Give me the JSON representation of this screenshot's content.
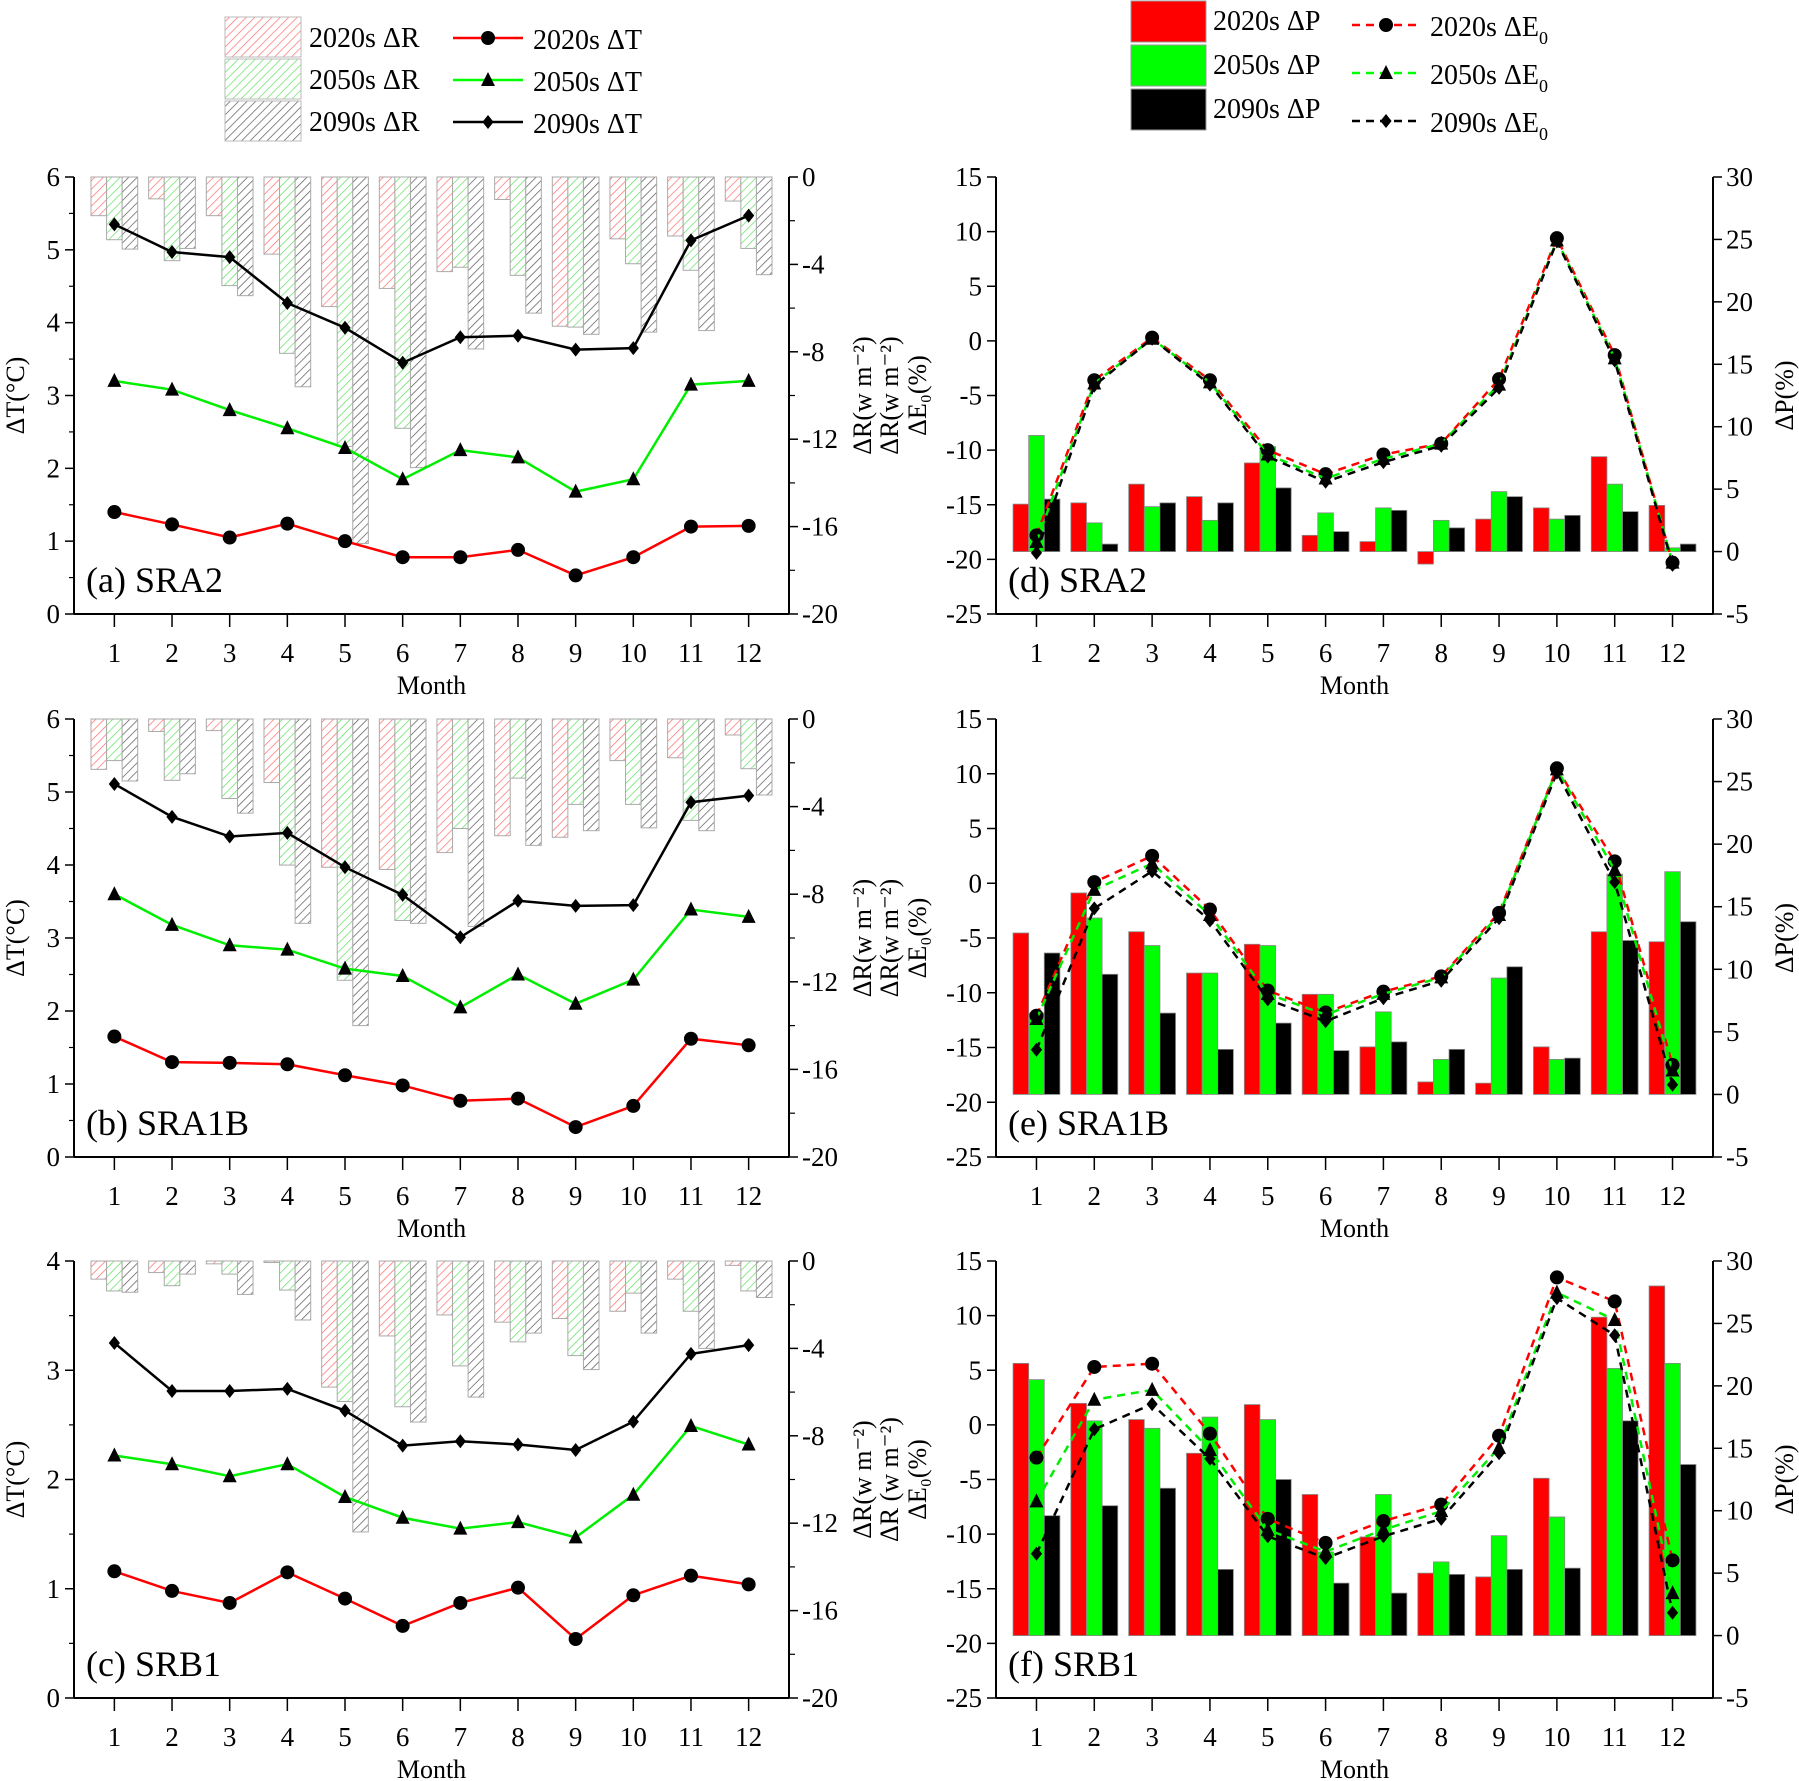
{
  "legend_left": {
    "items": [
      {
        "label": "2020s ΔR",
        "kind": "hatch",
        "color": "#ff0000"
      },
      {
        "label": "2050s ΔR",
        "kind": "hatch",
        "color": "#00dd00"
      },
      {
        "label": "2090s ΔR",
        "kind": "hatch",
        "color": "#000000"
      },
      {
        "label": "2020s ΔT",
        "kind": "line",
        "color": "#ff0000",
        "marker": "circle"
      },
      {
        "label": "2050s ΔT",
        "kind": "line",
        "color": "#00ff00",
        "marker": "triangle"
      },
      {
        "label": "2090s ΔT",
        "kind": "line",
        "color": "#000000",
        "marker": "diamond"
      }
    ]
  },
  "legend_right": {
    "items": [
      {
        "label": "2020s ΔP",
        "kind": "bar",
        "color": "#ff0000"
      },
      {
        "label": "2050s ΔP",
        "kind": "bar",
        "color": "#00ff00"
      },
      {
        "label": "2090s ΔP",
        "kind": "bar",
        "color": "#000000"
      },
      {
        "label": "2020s ΔE",
        "sub": "0",
        "kind": "dash",
        "color": "#ff0000",
        "marker": "circle"
      },
      {
        "label": "2050s ΔE",
        "sub": "0",
        "kind": "dash",
        "color": "#00ff00",
        "marker": "triangle"
      },
      {
        "label": "2090s ΔE",
        "sub": "0",
        "kind": "dash",
        "color": "#000000",
        "marker": "diamond"
      }
    ]
  },
  "chart_data": [
    {
      "id": "a",
      "type": "bar+line",
      "title": "(a) SRA2",
      "xlabel": "Month",
      "ylabel_left": "ΔT(°C)",
      "ylabel_right": "ΔR(w m⁻²)",
      "categories": [
        "1",
        "2",
        "3",
        "4",
        "5",
        "6",
        "7",
        "8",
        "9",
        "10",
        "11",
        "12"
      ],
      "ylim_left": [
        0,
        6
      ],
      "yticks_left": [
        0,
        1,
        2,
        3,
        4,
        5,
        6
      ],
      "ylim_right": [
        -20,
        0
      ],
      "yticks_right": [
        0,
        -4,
        -8,
        -12,
        -16,
        -20
      ],
      "bars": [
        {
          "name": "2020s ΔR",
          "values": [
            -1.77,
            -1.0,
            -1.77,
            -3.53,
            -5.93,
            -5.1,
            -4.33,
            -1.03,
            -6.83,
            -2.83,
            -2.7,
            -1.1
          ]
        },
        {
          "name": "2050s ΔR",
          "values": [
            -2.87,
            -3.83,
            -4.97,
            -8.07,
            -12.33,
            -11.5,
            -4.13,
            -4.5,
            -6.87,
            -3.97,
            -4.27,
            -3.27
          ]
        },
        {
          "name": "2090s ΔR",
          "values": [
            -3.3,
            -3.27,
            -5.43,
            -9.6,
            -16.77,
            -13.3,
            -7.87,
            -6.23,
            -7.2,
            -7.1,
            -7.03,
            -4.47
          ]
        }
      ],
      "lines": [
        {
          "name": "2020s ΔT",
          "values": [
            1.4,
            1.23,
            1.05,
            1.24,
            1.0,
            0.78,
            0.78,
            0.88,
            0.53,
            0.78,
            1.2,
            1.21
          ]
        },
        {
          "name": "2050s ΔT",
          "values": [
            3.2,
            3.08,
            2.8,
            2.55,
            2.28,
            1.85,
            2.25,
            2.15,
            1.68,
            1.85,
            3.15,
            3.2
          ]
        },
        {
          "name": "2090s ΔT",
          "values": [
            5.35,
            4.97,
            4.9,
            4.27,
            3.93,
            3.45,
            3.8,
            3.82,
            3.63,
            3.65,
            5.13,
            5.47
          ]
        }
      ]
    },
    {
      "id": "b",
      "type": "bar+line",
      "title": "(b)  SRA1B",
      "xlabel": "Month",
      "ylabel_left": "ΔT(°C)",
      "ylabel_right": "ΔR(w m⁻²)",
      "categories": [
        "1",
        "2",
        "3",
        "4",
        "5",
        "6",
        "7",
        "8",
        "9",
        "10",
        "11",
        "12"
      ],
      "ylim_left": [
        0,
        6
      ],
      "yticks_left": [
        0,
        1,
        2,
        3,
        4,
        5,
        6
      ],
      "ylim_right": [
        -20,
        0
      ],
      "yticks_right": [
        0,
        -4,
        -8,
        -12,
        -16,
        -20
      ],
      "bars": [
        {
          "name": "2020s ΔR",
          "values": [
            -2.3,
            -0.57,
            -0.53,
            -2.9,
            -6.77,
            -6.87,
            -6.1,
            -5.33,
            -5.4,
            -1.9,
            -1.77,
            -0.73
          ]
        },
        {
          "name": "2050s ΔR",
          "values": [
            -1.9,
            -2.8,
            -3.63,
            -6.67,
            -11.93,
            -9.2,
            -5.0,
            -2.7,
            -3.9,
            -3.9,
            -4.63,
            -2.27
          ]
        },
        {
          "name": "2090s ΔR",
          "values": [
            -2.83,
            -2.5,
            -4.3,
            -9.33,
            -14.0,
            -9.33,
            -9.47,
            -5.77,
            -5.1,
            -4.97,
            -5.1,
            -3.47
          ]
        }
      ],
      "lines": [
        {
          "name": "2020s ΔT",
          "values": [
            1.65,
            1.3,
            1.29,
            1.27,
            1.12,
            0.98,
            0.77,
            0.8,
            0.41,
            0.7,
            1.62,
            1.53
          ]
        },
        {
          "name": "2050s ΔT",
          "values": [
            3.6,
            3.18,
            2.9,
            2.84,
            2.58,
            2.48,
            2.05,
            2.5,
            2.1,
            2.43,
            3.39,
            3.29
          ]
        },
        {
          "name": "2090s ΔT",
          "values": [
            5.11,
            4.66,
            4.39,
            4.44,
            3.97,
            3.59,
            3.01,
            3.51,
            3.44,
            3.45,
            4.86,
            4.95
          ]
        }
      ]
    },
    {
      "id": "c",
      "type": "bar+line",
      "title": "(c)  SRB1",
      "xlabel": "Month",
      "ylabel_left": "ΔT(°C)",
      "ylabel_right": "ΔR(w m⁻²)",
      "categories": [
        "1",
        "2",
        "3",
        "4",
        "5",
        "6",
        "7",
        "8",
        "9",
        "10",
        "11",
        "12"
      ],
      "ylim_left": [
        0,
        4
      ],
      "yticks_left": [
        0,
        1,
        2,
        3,
        4
      ],
      "ylim_right": [
        -20,
        0
      ],
      "yticks_right": [
        0,
        -4,
        -8,
        -12,
        -16,
        -20
      ],
      "bars": [
        {
          "name": "2020s ΔR",
          "values": [
            -0.83,
            -0.53,
            -0.13,
            -0.07,
            -5.77,
            -3.43,
            -2.47,
            -2.8,
            -2.63,
            -2.3,
            -0.83,
            -0.2
          ]
        },
        {
          "name": "2050s ΔR",
          "values": [
            -1.37,
            -1.13,
            -0.6,
            -1.33,
            -6.43,
            -6.67,
            -4.8,
            -3.7,
            -4.33,
            -1.47,
            -2.3,
            -1.37
          ]
        },
        {
          "name": "2090s ΔR",
          "values": [
            -1.43,
            -0.6,
            -1.53,
            -2.7,
            -12.4,
            -7.37,
            -6.23,
            -3.3,
            -4.97,
            -3.3,
            -4.0,
            -1.67
          ]
        }
      ],
      "lines": [
        {
          "name": "2020s ΔT",
          "values": [
            1.16,
            0.98,
            0.87,
            1.15,
            0.91,
            0.66,
            0.87,
            1.01,
            0.54,
            0.94,
            1.12,
            1.04
          ]
        },
        {
          "name": "2050s ΔT",
          "values": [
            2.22,
            2.14,
            2.03,
            2.14,
            1.84,
            1.65,
            1.55,
            1.61,
            1.47,
            1.86,
            2.49,
            2.32
          ]
        },
        {
          "name": "2090s ΔT",
          "values": [
            3.25,
            2.81,
            2.81,
            2.83,
            2.63,
            2.31,
            2.35,
            2.32,
            2.27,
            2.53,
            3.15,
            3.23
          ]
        }
      ]
    },
    {
      "id": "d",
      "type": "bar+line",
      "title": "(d) SRA2",
      "xlabel": "Month",
      "ylabel_left": "ΔR(w m⁻²) ΔE₀(%)",
      "ylabel_right": "ΔP(%)",
      "categories": [
        "1",
        "2",
        "3",
        "4",
        "5",
        "6",
        "7",
        "8",
        "9",
        "10",
        "11",
        "12"
      ],
      "ylim_left": [
        -25,
        15
      ],
      "yticks_left": [
        15,
        10,
        5,
        0,
        -5,
        -10,
        -15,
        -20,
        -25
      ],
      "ylim_right": [
        -5,
        30
      ],
      "yticks_right": [
        30,
        25,
        20,
        15,
        10,
        5,
        0,
        -5
      ],
      "bars": [
        {
          "name": "2020s ΔP",
          "values": [
            3.8,
            3.9,
            5.4,
            4.4,
            7.1,
            1.3,
            0.8,
            -1.0,
            2.6,
            3.5,
            7.6,
            3.7
          ]
        },
        {
          "name": "2050s ΔP",
          "values": [
            9.3,
            2.3,
            3.6,
            2.5,
            8.4,
            3.1,
            3.5,
            2.5,
            4.8,
            2.6,
            5.4,
            0.3
          ]
        },
        {
          "name": "2090s ΔP",
          "values": [
            4.2,
            0.6,
            3.9,
            3.9,
            5.1,
            1.6,
            3.3,
            1.9,
            4.4,
            2.9,
            3.2,
            0.6
          ]
        }
      ],
      "lines": [
        {
          "name": "2020s ΔE0",
          "values": [
            -17.8,
            -3.6,
            0.3,
            -3.6,
            -10.0,
            -12.2,
            -10.4,
            -9.4,
            -3.5,
            9.4,
            -1.3,
            -20.3
          ]
        },
        {
          "name": "2050s ΔE0",
          "values": [
            -18.4,
            -3.9,
            0.2,
            -3.8,
            -10.4,
            -12.6,
            -10.8,
            -9.4,
            -4.0,
            9.2,
            -1.6,
            -20.3
          ]
        },
        {
          "name": "2090s ΔE0",
          "values": [
            -19.4,
            -4.1,
            0.2,
            -4.0,
            -10.6,
            -12.9,
            -11.1,
            -9.6,
            -4.3,
            9.1,
            -1.8,
            -20.5
          ]
        }
      ]
    },
    {
      "id": "e",
      "type": "bar+line",
      "title": "(e) SRA1B",
      "xlabel": "Month",
      "ylabel_left": "ΔR(w m⁻²) ΔE₀(%)",
      "ylabel_right": "ΔP(%)",
      "categories": [
        "1",
        "2",
        "3",
        "4",
        "5",
        "6",
        "7",
        "8",
        "9",
        "10",
        "11",
        "12"
      ],
      "ylim_left": [
        -25,
        15
      ],
      "yticks_left": [
        15,
        10,
        5,
        0,
        -5,
        -10,
        -15,
        -20,
        -25
      ],
      "ylim_right": [
        -5,
        30
      ],
      "yticks_right": [
        30,
        25,
        20,
        15,
        10,
        5,
        0,
        -5
      ],
      "bars": [
        {
          "name": "2020s ΔP",
          "values": [
            12.9,
            16.1,
            13.0,
            9.7,
            12.0,
            8.0,
            3.8,
            1.0,
            0.9,
            3.8,
            13.0,
            12.2
          ]
        },
        {
          "name": "2050s ΔP",
          "values": [
            6.5,
            14.1,
            11.9,
            9.7,
            11.9,
            8.0,
            6.6,
            2.8,
            9.3,
            2.8,
            17.6,
            17.8
          ]
        },
        {
          "name": "2090s ΔP",
          "values": [
            11.3,
            9.6,
            6.5,
            3.6,
            5.7,
            3.5,
            4.2,
            3.6,
            10.2,
            2.9,
            12.3,
            13.8
          ]
        }
      ],
      "lines": [
        {
          "name": "2020s ΔE0",
          "values": [
            -12.1,
            0.1,
            2.5,
            -2.4,
            -9.8,
            -11.8,
            -9.9,
            -8.5,
            -2.7,
            10.5,
            2.0,
            -16.6
          ]
        },
        {
          "name": "2050s ΔE0",
          "values": [
            -12.4,
            -0.6,
            1.8,
            -2.9,
            -10.1,
            -12.0,
            -10.1,
            -8.6,
            -2.9,
            10.4,
            1.2,
            -17.1
          ]
        },
        {
          "name": "2090s ΔE0",
          "values": [
            -15.2,
            -2.3,
            1.1,
            -3.4,
            -10.6,
            -12.6,
            -10.5,
            -8.9,
            -3.2,
            10.1,
            0.1,
            -18.4
          ]
        }
      ]
    },
    {
      "id": "f",
      "type": "bar+line",
      "title": "(f) SRB1",
      "xlabel": "Month",
      "ylabel_left": "ΔR (w m⁻²) ΔE₀(%)",
      "ylabel_right": "ΔP(%)",
      "categories": [
        "1",
        "2",
        "3",
        "4",
        "5",
        "6",
        "7",
        "8",
        "9",
        "10",
        "11",
        "12"
      ],
      "ylim_left": [
        -25,
        15
      ],
      "yticks_left": [
        15,
        10,
        5,
        0,
        -5,
        -10,
        -15,
        -20,
        -25
      ],
      "ylim_right": [
        -5,
        30
      ],
      "yticks_right": [
        30,
        25,
        20,
        15,
        10,
        5,
        0,
        -5
      ],
      "bars": [
        {
          "name": "2020s ΔP",
          "values": [
            21.8,
            18.6,
            17.3,
            14.6,
            18.5,
            11.3,
            7.9,
            5.0,
            4.7,
            12.6,
            25.5,
            28.0
          ]
        },
        {
          "name": "2050s ΔP",
          "values": [
            20.5,
            17.2,
            16.6,
            17.5,
            17.3,
            6.7,
            11.3,
            5.9,
            8.0,
            9.5,
            21.4,
            21.8
          ]
        },
        {
          "name": "2090s ΔP",
          "values": [
            9.6,
            10.4,
            11.8,
            5.3,
            12.5,
            4.2,
            3.4,
            4.9,
            5.3,
            5.4,
            17.2,
            13.7
          ]
        }
      ],
      "lines": [
        {
          "name": "2020s ΔE0",
          "values": [
            -3.0,
            5.3,
            5.6,
            -0.8,
            -8.6,
            -10.8,
            -8.8,
            -7.3,
            -1.0,
            13.5,
            11.3,
            -12.4
          ]
        },
        {
          "name": "2050s ΔE0",
          "values": [
            -7.0,
            2.3,
            3.2,
            -2.3,
            -9.6,
            -11.6,
            -9.6,
            -7.9,
            -2.1,
            12.1,
            9.6,
            -15.4
          ]
        },
        {
          "name": "2090s ΔE0",
          "values": [
            -11.8,
            -0.4,
            1.9,
            -3.1,
            -10.2,
            -12.2,
            -10.2,
            -8.6,
            -2.6,
            11.6,
            8.2,
            -17.2
          ]
        }
      ]
    }
  ]
}
